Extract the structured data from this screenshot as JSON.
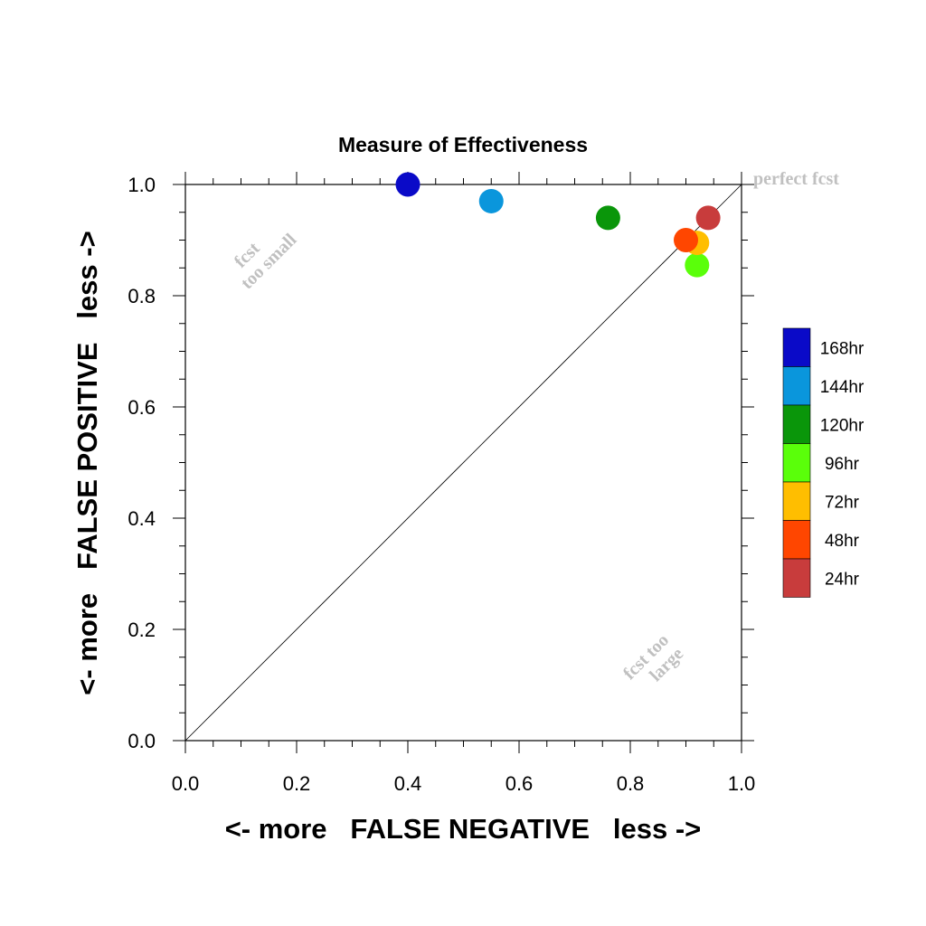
{
  "chart_data": {
    "type": "scatter",
    "title": "Measure of Effectiveness",
    "xlabel": "<- more   FALSE NEGATIVE   less ->",
    "ylabel": "<- more   FALSE POSITIVE   less ->",
    "xlim": [
      0.0,
      1.0
    ],
    "ylim": [
      0.0,
      1.0
    ],
    "xticks": [
      "0.0",
      "0.2",
      "0.4",
      "0.6",
      "0.8",
      "1.0"
    ],
    "yticks": [
      "0.0",
      "0.2",
      "0.4",
      "0.6",
      "0.8",
      "1.0"
    ],
    "grid": false,
    "diagonal_reference_line": true,
    "annotations": {
      "perfect": "perfect fcst",
      "small_1": "fcst",
      "small_2": "too small",
      "large_1": "fcst too",
      "large_2": "large"
    },
    "legend_position": "right",
    "series": [
      {
        "name": "168hr",
        "color": "#0a0ac8",
        "x": 0.4,
        "y": 1.0
      },
      {
        "name": "144hr",
        "color": "#0a96dc",
        "x": 0.55,
        "y": 0.97
      },
      {
        "name": "120hr",
        "color": "#0a960a",
        "x": 0.76,
        "y": 0.94
      },
      {
        "name": "96hr",
        "color": "#5aff0a",
        "x": 0.92,
        "y": 0.855
      },
      {
        "name": "72hr",
        "color": "#ffbe00",
        "x": 0.92,
        "y": 0.895
      },
      {
        "name": "48hr",
        "color": "#ff4600",
        "x": 0.9,
        "y": 0.9
      },
      {
        "name": "24hr",
        "color": "#c83c3c",
        "x": 0.94,
        "y": 0.94
      }
    ],
    "legend_order": [
      "168hr",
      "144hr",
      "120hr",
      "96hr",
      "72hr",
      "48hr",
      "24hr"
    ]
  }
}
